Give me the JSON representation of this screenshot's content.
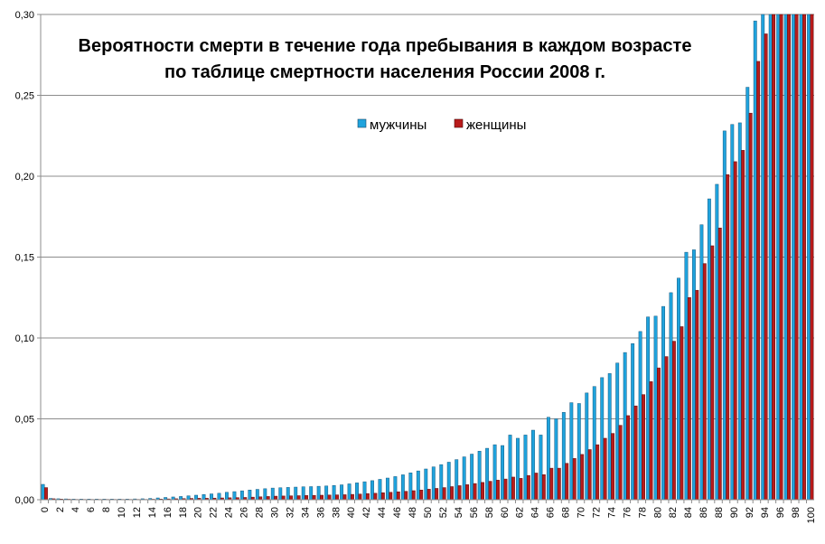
{
  "chart_data": {
    "type": "bar",
    "title_line1": "Вероятности смерти в течение года пребывания в каждом возрасте",
    "title_line2": "по таблице смертности населения России 2008 г.",
    "xlabel": "",
    "ylabel": "",
    "ylim": [
      0,
      0.3
    ],
    "yticks": [
      "0,00",
      "0,05",
      "0,10",
      "0,15",
      "0,20",
      "0,25",
      "0,30"
    ],
    "grid": true,
    "legend_position": "top-center",
    "colors": {
      "male": "#1FA3DD",
      "female": "#B81B1B"
    },
    "categories": [
      0,
      1,
      2,
      3,
      4,
      5,
      6,
      7,
      8,
      9,
      10,
      11,
      12,
      13,
      14,
      15,
      16,
      17,
      18,
      19,
      20,
      21,
      22,
      23,
      24,
      25,
      26,
      27,
      28,
      29,
      30,
      31,
      32,
      33,
      34,
      35,
      36,
      37,
      38,
      39,
      40,
      41,
      42,
      43,
      44,
      45,
      46,
      47,
      48,
      49,
      50,
      51,
      52,
      53,
      54,
      55,
      56,
      57,
      58,
      59,
      60,
      61,
      62,
      63,
      64,
      65,
      66,
      67,
      68,
      69,
      70,
      71,
      72,
      73,
      74,
      75,
      76,
      77,
      78,
      79,
      80,
      81,
      82,
      83,
      84,
      85,
      86,
      87,
      88,
      89,
      90,
      91,
      92,
      93,
      94,
      95,
      96,
      97,
      98,
      99,
      100
    ],
    "series": [
      {
        "name": "мужчины",
        "values": [
          0.0095,
          0.0008,
          0.0006,
          0.0005,
          0.0004,
          0.0004,
          0.0004,
          0.0004,
          0.0004,
          0.0004,
          0.0004,
          0.0004,
          0.0005,
          0.0006,
          0.0008,
          0.0011,
          0.0014,
          0.0017,
          0.002,
          0.0024,
          0.0028,
          0.0032,
          0.0036,
          0.004,
          0.0046,
          0.005,
          0.0055,
          0.006,
          0.0064,
          0.0068,
          0.0072,
          0.0074,
          0.0076,
          0.0078,
          0.008,
          0.0081,
          0.0083,
          0.0085,
          0.0088,
          0.0092,
          0.0098,
          0.0104,
          0.0111,
          0.0118,
          0.0126,
          0.0134,
          0.0143,
          0.0154,
          0.0166,
          0.0178,
          0.019,
          0.0203,
          0.0217,
          0.0232,
          0.0248,
          0.0265,
          0.0282,
          0.03,
          0.0318,
          0.034,
          0.0335,
          0.04,
          0.038,
          0.04,
          0.043,
          0.04,
          0.051,
          0.05,
          0.054,
          0.06,
          0.0595,
          0.066,
          0.07,
          0.0755,
          0.078,
          0.0845,
          0.091,
          0.0965,
          0.104,
          0.113,
          0.1135,
          0.1195,
          0.128,
          0.137,
          0.153,
          0.1545,
          0.17,
          0.186,
          0.195,
          0.228,
          0.232,
          0.233,
          0.255,
          0.296,
          0.3,
          0.3,
          0.3,
          0.3,
          0.3,
          0.3,
          0.3
        ]
      },
      {
        "name": "женщины",
        "values": [
          0.0075,
          0.0006,
          0.0004,
          0.0003,
          0.0002,
          0.0002,
          0.0002,
          0.0002,
          0.0002,
          0.0002,
          0.0002,
          0.0002,
          0.0002,
          0.0002,
          0.0003,
          0.0004,
          0.0005,
          0.0006,
          0.0007,
          0.0008,
          0.0009,
          0.0009,
          0.001,
          0.0011,
          0.0012,
          0.0013,
          0.0014,
          0.0016,
          0.0018,
          0.002,
          0.0022,
          0.0023,
          0.0024,
          0.0025,
          0.0026,
          0.0027,
          0.0028,
          0.0029,
          0.003,
          0.0031,
          0.0033,
          0.0035,
          0.0038,
          0.004,
          0.0043,
          0.0046,
          0.0049,
          0.0052,
          0.0056,
          0.006,
          0.0065,
          0.007,
          0.0075,
          0.0081,
          0.0087,
          0.0093,
          0.01,
          0.0107,
          0.0114,
          0.0121,
          0.0128,
          0.014,
          0.0132,
          0.015,
          0.0165,
          0.0155,
          0.0195,
          0.0195,
          0.0225,
          0.0255,
          0.028,
          0.031,
          0.034,
          0.038,
          0.041,
          0.046,
          0.052,
          0.058,
          0.065,
          0.073,
          0.0815,
          0.0885,
          0.098,
          0.107,
          0.125,
          0.1295,
          0.146,
          0.157,
          0.168,
          0.201,
          0.209,
          0.216,
          0.239,
          0.271,
          0.288,
          0.3,
          0.3,
          0.3,
          0.3,
          0.3,
          0.3
        ]
      }
    ]
  }
}
